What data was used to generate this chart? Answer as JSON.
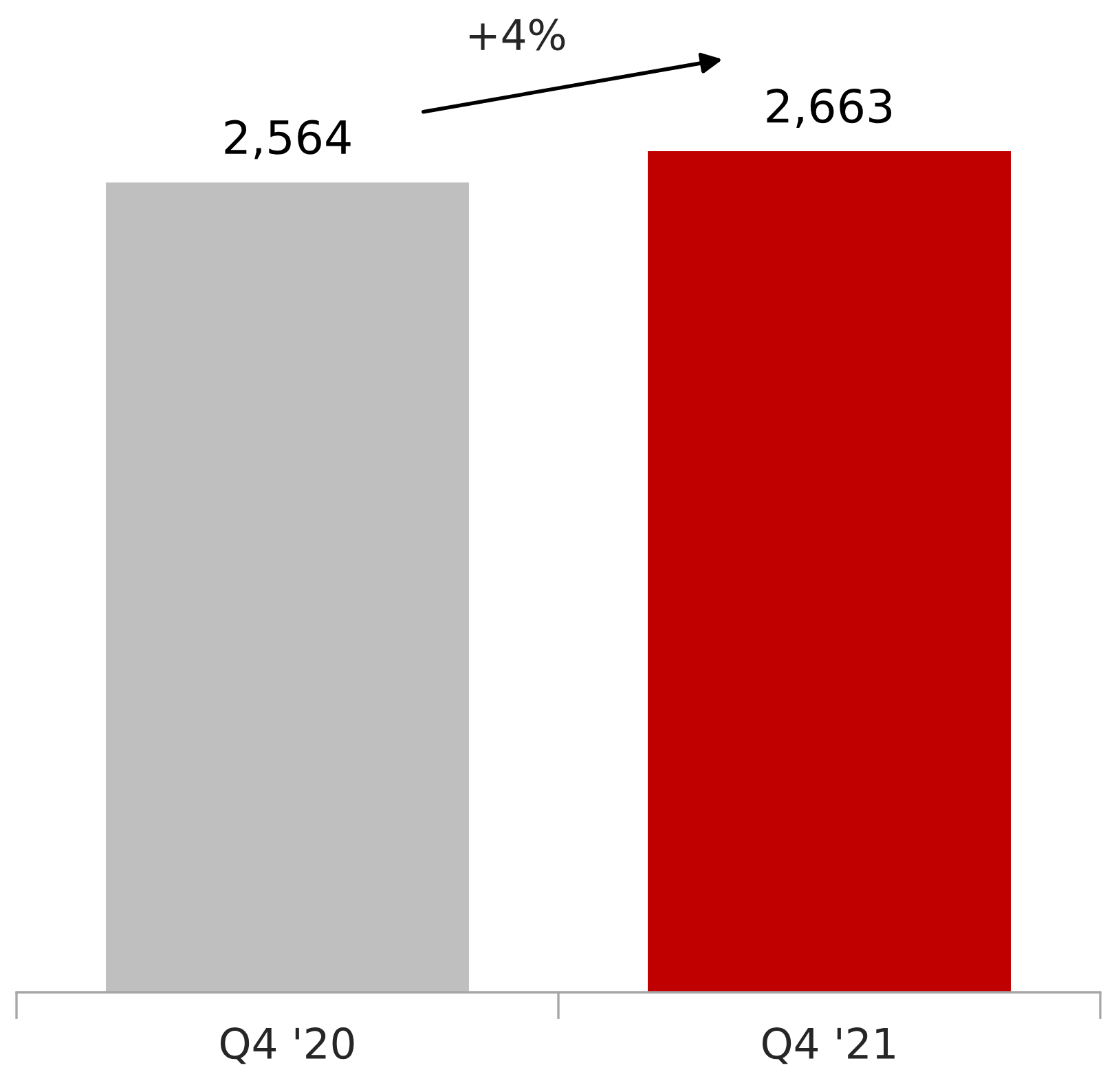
{
  "chart_data": {
    "type": "bar",
    "categories": [
      "Q4 '20",
      "Q4 '21"
    ],
    "colors": [
      "#bfbfbf",
      "#c00000"
    ],
    "values": [
      2564,
      2663
    ],
    "value_labels": [
      "2,564",
      "2,663"
    ],
    "annotations": [
      "+4%"
    ],
    "grid": false,
    "legend": false
  }
}
